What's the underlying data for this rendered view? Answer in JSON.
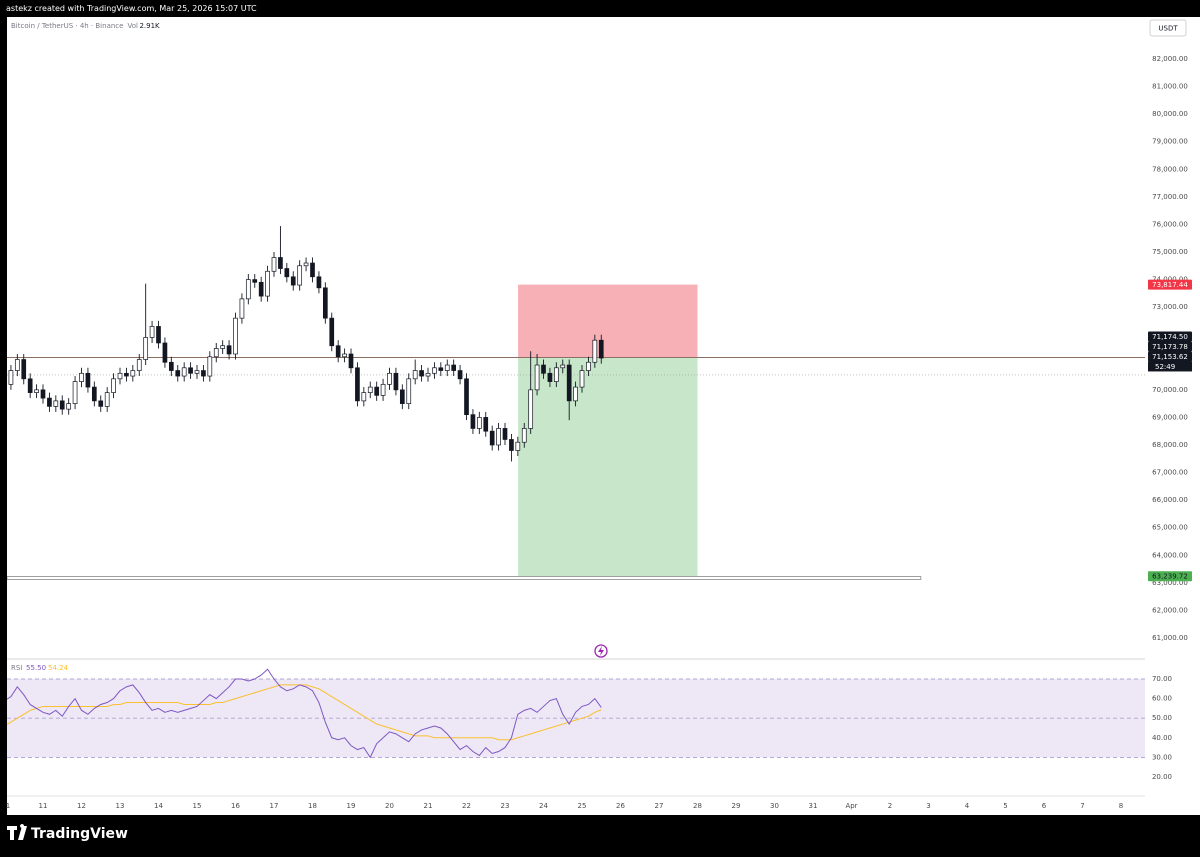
{
  "header": {
    "attribution": "astekz created with TradingView.com, Mar 25, 2026 15:07 UTC"
  },
  "footer": {
    "brand": "TradingView"
  },
  "chart_data": [
    {
      "type": "candlestick",
      "legend": {
        "symbol": "Bitcoin / TetherUS · 4h · Binance",
        "volume_label": "Vol",
        "volume": "2.91K"
      },
      "currency": "USDT",
      "up_color": "#ffffff",
      "down_color": "#131722",
      "border_color": "#131722",
      "x": [
        10,
        10.167,
        10.333,
        10.5,
        10.667,
        10.833,
        11,
        11.167,
        11.333,
        11.5,
        11.667,
        11.833,
        12,
        12.167,
        12.333,
        12.5,
        12.667,
        12.833,
        13,
        13.167,
        13.333,
        13.5,
        13.667,
        13.833,
        14,
        14.167,
        14.333,
        14.5,
        14.667,
        14.833,
        15,
        15.167,
        15.333,
        15.5,
        15.667,
        15.833,
        16,
        16.167,
        16.333,
        16.5,
        16.667,
        16.833,
        17,
        17.167,
        17.333,
        17.5,
        17.667,
        17.833,
        18,
        18.167,
        18.333,
        18.5,
        18.667,
        18.833,
        19,
        19.167,
        19.333,
        19.5,
        19.667,
        19.833,
        20,
        20.167,
        20.333,
        20.5,
        20.667,
        20.833,
        21,
        21.167,
        21.333,
        21.5,
        21.667,
        21.833,
        22,
        22.167,
        22.333,
        22.5,
        22.667,
        22.833,
        23,
        23.167,
        23.333,
        23.5,
        23.667,
        23.833,
        24,
        24.167,
        24.333,
        24.5,
        24.667,
        24.833,
        25,
        25.167,
        25.333,
        25.5
      ],
      "open": [
        69800,
        70200,
        70700,
        71100,
        70400,
        69900,
        70000,
        69700,
        69400,
        69600,
        69300,
        69500,
        70300,
        70600,
        70100,
        69600,
        69400,
        69900,
        70400,
        70600,
        70500,
        70700,
        71100,
        71900,
        72300,
        71700,
        71000,
        70700,
        70500,
        70800,
        70600,
        70700,
        70500,
        71200,
        71500,
        71600,
        71300,
        72600,
        73300,
        74000,
        73900,
        73400,
        74300,
        74800,
        74400,
        74100,
        73800,
        74500,
        74600,
        74100,
        73700,
        72600,
        71600,
        71200,
        71300,
        70800,
        69600,
        69900,
        70100,
        69800,
        70200,
        70600,
        70000,
        69500,
        70400,
        70700,
        70500,
        70600,
        70800,
        70700,
        70900,
        70700,
        70400,
        69100,
        68600,
        69000,
        68500,
        68000,
        68600,
        68200,
        67800,
        68100,
        68600,
        70000,
        70900,
        70600,
        70300,
        70800,
        70900,
        69600,
        70100,
        70700,
        71000,
        71800
      ],
      "high": [
        70400,
        70900,
        71300,
        71300,
        70600,
        70200,
        70200,
        69900,
        69800,
        69800,
        69700,
        70500,
        70800,
        70800,
        70300,
        69800,
        70100,
        70600,
        70800,
        70800,
        70900,
        71300,
        73850,
        72500,
        72500,
        71900,
        71200,
        70900,
        71000,
        71000,
        70900,
        70900,
        71400,
        71700,
        71800,
        71800,
        72800,
        73500,
        74200,
        74200,
        74100,
        74500,
        75000,
        75940,
        74600,
        74300,
        74700,
        74800,
        74800,
        74300,
        73900,
        72800,
        71800,
        71500,
        71500,
        71000,
        70100,
        70300,
        70300,
        70400,
        70800,
        70800,
        70200,
        70600,
        71100,
        70900,
        70800,
        71000,
        71000,
        71100,
        71100,
        70900,
        70600,
        69300,
        69200,
        69200,
        68700,
        68800,
        68800,
        68400,
        68300,
        68800,
        71400,
        71300,
        71100,
        70800,
        71000,
        71100,
        71100,
        70300,
        70900,
        71200,
        72000,
        72000
      ],
      "low": [
        69600,
        70000,
        70500,
        70200,
        69700,
        69700,
        69500,
        69200,
        69200,
        69100,
        69100,
        69300,
        70100,
        69900,
        69400,
        69200,
        69200,
        69700,
        70200,
        70300,
        70300,
        70500,
        70900,
        71700,
        71500,
        70800,
        70500,
        70300,
        70300,
        70400,
        70400,
        70300,
        70300,
        71000,
        71300,
        71100,
        71100,
        72400,
        73100,
        73700,
        73200,
        73200,
        74100,
        74200,
        73900,
        73600,
        73600,
        74300,
        73900,
        73500,
        72400,
        71400,
        71000,
        71000,
        70600,
        69400,
        69400,
        69700,
        69600,
        69600,
        70000,
        69800,
        69300,
        69300,
        70200,
        70300,
        70300,
        70400,
        70500,
        70500,
        70500,
        70200,
        68900,
        68400,
        68400,
        68300,
        67800,
        67800,
        68000,
        67400,
        67600,
        67900,
        68400,
        69800,
        70400,
        70100,
        70100,
        70600,
        68900,
        69400,
        69900,
        70500,
        70800,
        70950
      ],
      "close": [
        70200,
        70700,
        71100,
        70400,
        69900,
        70000,
        69700,
        69400,
        69600,
        69300,
        69500,
        70300,
        70600,
        70100,
        69600,
        69400,
        69900,
        70400,
        70600,
        70500,
        70700,
        71100,
        71900,
        72300,
        71700,
        71000,
        70700,
        70500,
        70800,
        70600,
        70700,
        70500,
        71200,
        71500,
        71600,
        71300,
        72600,
        73300,
        74000,
        73900,
        73400,
        74300,
        74800,
        74400,
        74100,
        73800,
        74500,
        74600,
        74100,
        73700,
        72600,
        71600,
        71200,
        71300,
        70800,
        69600,
        69900,
        70100,
        69800,
        70200,
        70600,
        70000,
        69500,
        70400,
        70700,
        70500,
        70600,
        70800,
        70700,
        70900,
        70700,
        70400,
        69100,
        68600,
        69000,
        68500,
        68000,
        68600,
        68200,
        67800,
        68100,
        68600,
        70000,
        70900,
        70600,
        70300,
        70800,
        70900,
        69600,
        70100,
        70700,
        71000,
        71800,
        71153.62
      ],
      "xlim": [
        10.065,
        39.623
      ],
      "ylim": [
        60274,
        83523
      ],
      "xticks": [
        {
          "value": 10,
          "label": "1"
        },
        11,
        12,
        13,
        14,
        15,
        16,
        17,
        18,
        19,
        20,
        21,
        22,
        23,
        24,
        25,
        26,
        27,
        28,
        29,
        30,
        31,
        {
          "value": 32,
          "label": "Apr"
        },
        {
          "value": 33,
          "label": "2"
        },
        {
          "value": 34,
          "label": "3"
        },
        {
          "value": 35,
          "label": "4"
        },
        {
          "value": 36,
          "label": "5"
        },
        {
          "value": 37,
          "label": "6"
        },
        {
          "value": 38,
          "label": "7"
        },
        {
          "value": 39,
          "label": "8"
        }
      ],
      "yticks": [
        {
          "value": 61000,
          "label": "61,000.00"
        },
        {
          "value": 62000,
          "label": "62,000.00"
        },
        {
          "value": 63000,
          "label": "63,000.00"
        },
        {
          "value": 64000,
          "label": "64,000.00"
        },
        {
          "value": 65000,
          "label": "65,000.00"
        },
        {
          "value": 66000,
          "label": "66,000.00"
        },
        {
          "value": 67000,
          "label": "67,000.00"
        },
        {
          "value": 68000,
          "label": "68,000.00"
        },
        {
          "value": 69000,
          "label": "69,000.00"
        },
        {
          "value": 70000,
          "label": "70,000.00"
        },
        {
          "value": 71000,
          "label": "71,000.00"
        },
        {
          "value": 72000,
          "label": "72,000.00"
        },
        {
          "value": 73000,
          "label": "73,000.00"
        },
        {
          "value": 74000,
          "label": "74,000.00"
        },
        {
          "value": 75000,
          "label": "75,000.00"
        },
        {
          "value": 76000,
          "label": "76,000.00"
        },
        {
          "value": 77000,
          "label": "77,000.00"
        },
        {
          "value": 78000,
          "label": "78,000.00"
        },
        {
          "value": 79000,
          "label": "79,000.00"
        },
        {
          "value": 80000,
          "label": "80,000.00"
        },
        {
          "value": 81000,
          "label": "81,000.00"
        },
        {
          "value": 82000,
          "label": "82,000.00"
        }
      ],
      "grid": false,
      "position": {
        "x_start": 23.34,
        "x_end": 28.0,
        "entry": {
          "value": 71174.5,
          "label": "71,174.50"
        },
        "stop": {
          "value": 73817.44,
          "label": "73,817.44"
        },
        "target": {
          "value": 63239.72,
          "label": "63,239.72"
        },
        "stop_color": "#f7b0b6",
        "target_color": "#c8e6c9"
      },
      "price_marker": {
        "value": 71173.78,
        "label": "71,173.78"
      },
      "last_price": {
        "value": 71153.62,
        "label": "71,153.62",
        "countdown": "52:49"
      },
      "reference_line": 70540,
      "horizontal_ray": {
        "value": 63175,
        "x_end": 33.8
      }
    },
    {
      "type": "line",
      "legend": {
        "title": "RSI",
        "values": [
          "55.50",
          "54.24"
        ]
      },
      "ylim": [
        10.8,
        79.7
      ],
      "yticks": [
        {
          "value": 70,
          "label": "70.00"
        },
        {
          "value": 60,
          "label": "60.00"
        },
        {
          "value": 50,
          "label": "50.00"
        },
        {
          "value": 40,
          "label": "40.00"
        },
        {
          "value": 30,
          "label": "30.00"
        },
        {
          "value": 20,
          "label": "20.00"
        }
      ],
      "bands": {
        "upper": 70,
        "middle": 50,
        "lower": 30,
        "color": "#ede7f6"
      },
      "series": [
        {
          "color": "#7e57c2",
          "values": [
            59,
            61,
            66,
            62,
            57,
            55,
            53,
            52,
            54,
            51,
            56,
            60,
            54,
            52,
            55,
            57,
            58,
            60,
            64,
            66,
            67,
            63,
            58,
            54,
            55,
            53,
            54,
            53,
            54,
            55,
            56,
            59,
            62,
            60,
            63,
            66,
            70,
            70,
            69,
            70,
            72,
            75,
            70,
            66,
            64,
            65,
            67,
            66,
            64,
            58,
            48,
            40,
            39,
            40,
            36,
            34,
            35,
            30,
            37,
            40,
            43,
            42,
            40,
            38,
            42,
            44,
            45,
            46,
            45,
            42,
            38,
            34,
            36,
            33,
            31,
            35,
            32,
            33,
            35,
            40,
            52,
            54,
            55,
            53,
            56,
            59,
            60,
            52,
            47,
            53,
            56,
            57,
            60,
            55.5
          ]
        },
        {
          "color": "#fbc02d",
          "values": [
            46,
            48,
            50,
            52,
            54,
            55,
            56,
            56,
            56,
            56,
            56,
            56,
            56,
            56,
            56,
            56,
            56,
            57,
            57,
            58,
            58,
            58,
            58,
            58,
            58,
            58,
            58,
            58,
            57,
            57,
            57,
            57,
            57,
            58,
            58,
            59,
            60,
            61,
            62,
            63,
            64,
            65,
            66,
            67,
            67,
            67,
            67,
            67,
            66,
            65,
            63,
            61,
            59,
            57,
            55,
            53,
            51,
            49,
            47,
            46,
            45,
            44,
            43,
            42,
            41,
            41,
            41,
            40,
            40,
            40,
            40,
            40,
            40,
            40,
            40,
            40,
            40,
            39,
            39,
            39,
            40,
            41,
            42,
            43,
            44,
            45,
            46,
            47,
            48,
            49,
            50,
            51,
            53,
            54.24
          ]
        }
      ]
    }
  ]
}
